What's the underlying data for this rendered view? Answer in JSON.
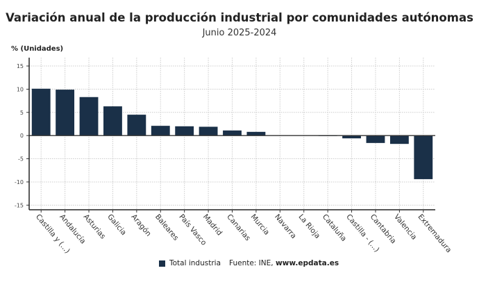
{
  "chart_data": {
    "type": "bar",
    "title": "Variación anual de la producción industrial por comunidades autónomas",
    "subtitle": "Junio 2025-2024",
    "ylabel": "% (Unidades)",
    "xlabel": "",
    "categories": [
      "Castilla y (...)",
      "Andalucía",
      "Asturias",
      "Galicia",
      "Aragón",
      "Baleares",
      "País Vasco",
      "Madrid",
      "Canarias",
      "Murcia",
      "Navarra",
      "La Rioja",
      "Cataluña",
      "Castilla - (...)",
      "Cantabria",
      "Valencia",
      "Extremadura"
    ],
    "series": [
      {
        "name": "Total industria",
        "values": [
          10.1,
          9.9,
          8.3,
          6.3,
          4.5,
          2.1,
          2.0,
          1.9,
          1.1,
          0.8,
          0.1,
          0.1,
          -0.1,
          -0.6,
          -1.6,
          -1.8,
          -9.4
        ]
      }
    ],
    "yticks": [
      15,
      10,
      5,
      0,
      -5,
      -10,
      -15
    ],
    "ylim": [
      -16,
      16.8
    ],
    "grid": true,
    "legend_position": "bottom",
    "bar_color": "#1a3048"
  },
  "legend": {
    "label": "Total industria"
  },
  "source": {
    "prefix": "Fuente: INE, ",
    "site": "www.epdata.es"
  }
}
